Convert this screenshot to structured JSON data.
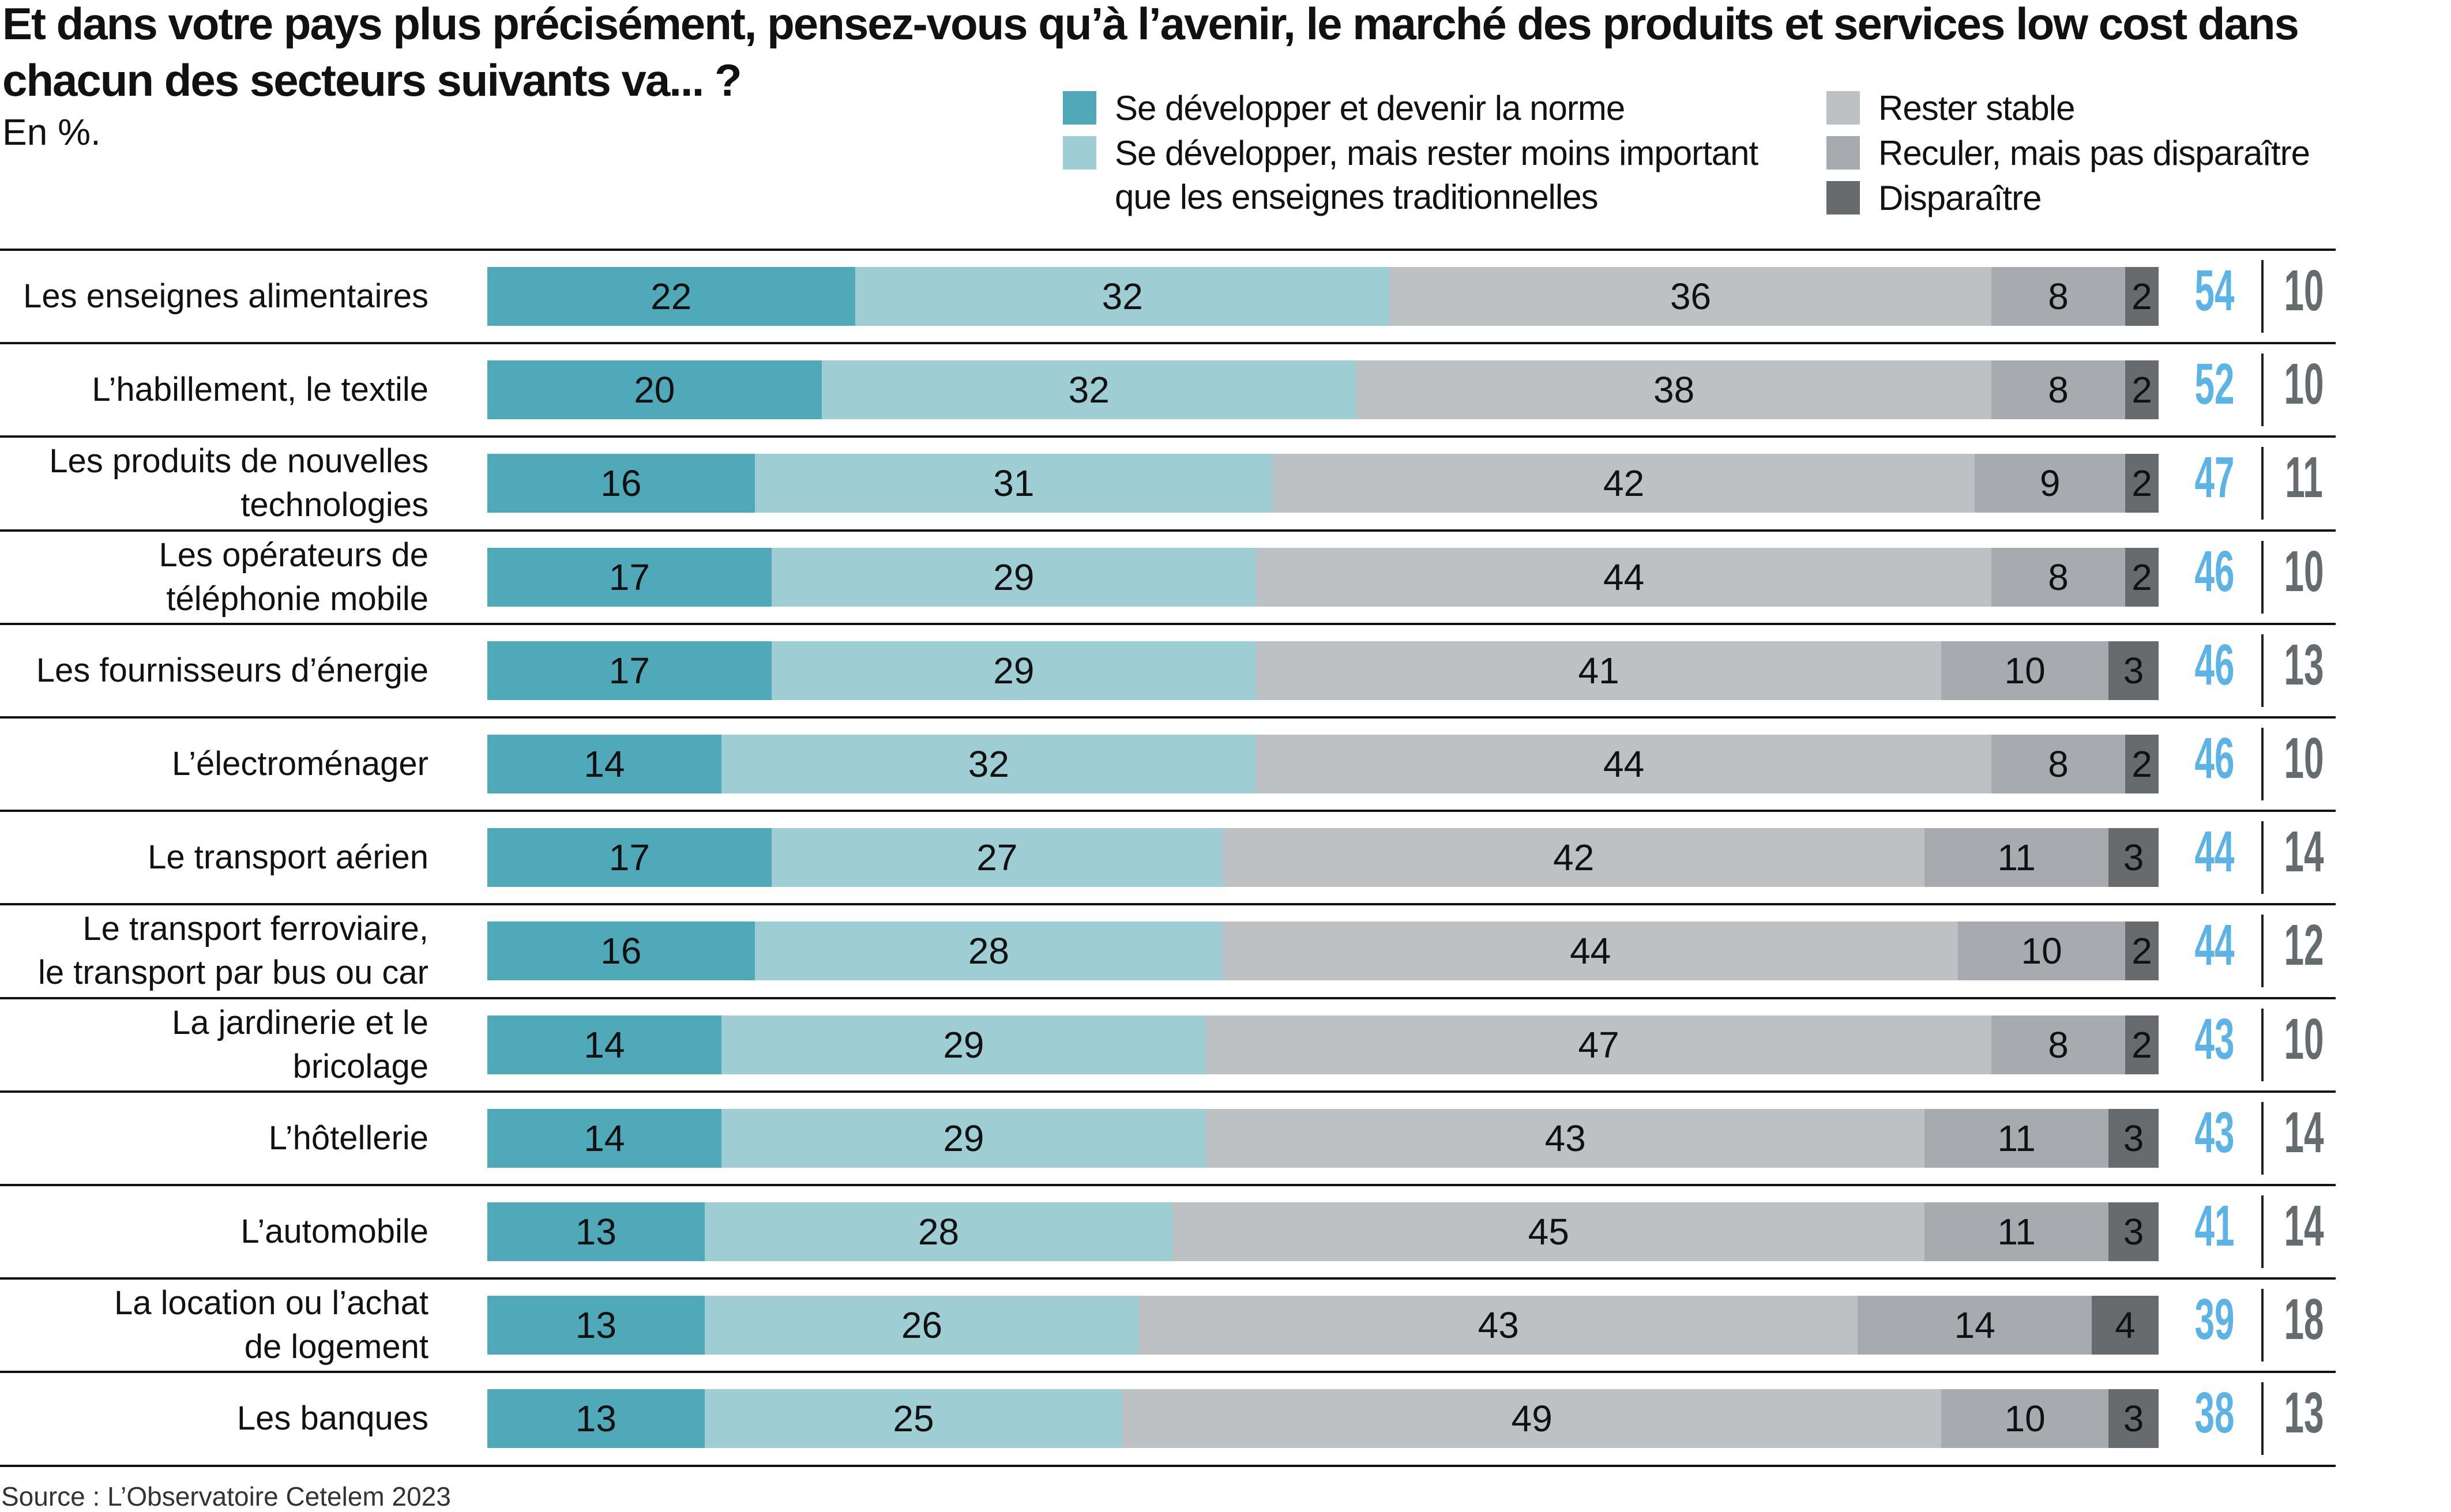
{
  "chart_data": {
    "type": "bar",
    "stacked": true,
    "orientation": "horizontal",
    "title": "Et dans votre pays plus précisément, pensez-vous qu’à l’avenir, le marché des produits et services low cost dans chacun des secteurs suivants va... ?",
    "subtitle": "En %.",
    "source": "Source : L’Observatoire Cetelem 2023",
    "legend_placement": "top-right",
    "series": [
      {
        "name": "Se développer et devenir la norme",
        "color": "#4fa9b8",
        "values": [
          22,
          20,
          16,
          17,
          17,
          14,
          17,
          16,
          14,
          14,
          13,
          13,
          13
        ]
      },
      {
        "name": "Se développer, mais rester moins important que les enseignes traditionnelles",
        "color": "#9ecdd3",
        "values": [
          32,
          32,
          31,
          29,
          29,
          32,
          27,
          28,
          29,
          29,
          28,
          26,
          25
        ]
      },
      {
        "name": "Rester stable",
        "color": "#bdc1c3",
        "values": [
          36,
          38,
          42,
          44,
          41,
          44,
          42,
          44,
          47,
          43,
          45,
          43,
          49
        ]
      },
      {
        "name": "Reculer, mais pas disparaître",
        "color": "#a7aaae",
        "values": [
          8,
          8,
          9,
          8,
          10,
          8,
          11,
          10,
          8,
          11,
          11,
          14,
          10
        ]
      },
      {
        "name": "Disparaître",
        "color": "#676b6e",
        "values": [
          2,
          2,
          2,
          2,
          3,
          2,
          3,
          2,
          2,
          3,
          3,
          4,
          3
        ]
      }
    ],
    "categories": [
      "Les enseignes alimentaires",
      "L’habillement, le textile",
      "Les produits de nouvelles\ntechnologies",
      "Les opérateurs de\ntéléphonie mobile",
      "Les fournisseurs d’énergie",
      "L’électroménager",
      "Le transport aérien",
      "Le transport ferroviaire,\nle transport par bus ou car",
      "La jardinerie et le\nbricolage",
      "L’hôtellerie",
      "L’automobile",
      "La location ou l’achat\nde logement",
      "Les banques"
    ],
    "totals_develop": [
      54,
      52,
      47,
      46,
      46,
      46,
      44,
      44,
      43,
      43,
      41,
      39,
      38
    ],
    "totals_decline": [
      10,
      10,
      11,
      10,
      13,
      10,
      14,
      12,
      10,
      14,
      14,
      18,
      13
    ],
    "totals_develop_color": "#5cb4e6",
    "totals_decline_color": "#666b6e",
    "xlim": [
      0,
      100
    ]
  }
}
